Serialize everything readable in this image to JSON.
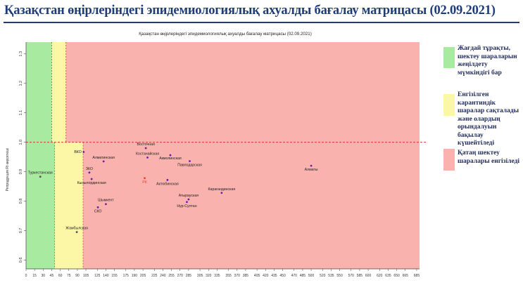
{
  "slide": {
    "title": "Қазақстан өңірлеріндегі эпидемиологиялық ахуалды бағалау матрицасы  (02.09.2021)"
  },
  "legend": [
    {
      "color": "#a8eaa0",
      "label": "Жағдай тұрақты, шектеу шараларын жеңілдету мүмкіндігі бар"
    },
    {
      "color": "#fbf7a6",
      "label": "Енгізілген карантиндік шаралар сақталады және олардың орындалуын бақылау күшейтіледі"
    },
    {
      "color": "#f9b2ad",
      "label": "Қатаң шектеу шаралары енгізіледі"
    }
  ],
  "chart_data": {
    "type": "scatter",
    "title": "Қазақстан өңірлеріндегі эпидемиологиялық ахуалды бағалау матрицасы  (02.09.2021)",
    "ylabel": "Репродукция Rt көрсеткіші",
    "xlabel": "",
    "xlim": [
      0,
      690
    ],
    "ylim": [
      0.57,
      1.34
    ],
    "x_ticks": [
      0,
      15,
      30,
      45,
      60,
      75,
      90,
      105,
      125,
      140,
      155,
      175,
      190,
      205,
      225,
      240,
      255,
      270,
      285,
      305,
      320,
      335,
      355,
      370,
      385,
      405,
      420,
      435,
      450,
      470,
      485,
      500,
      520,
      535,
      550,
      570,
      585,
      600,
      620,
      635,
      650,
      665,
      685
    ],
    "y_ticks": [
      0.6,
      0.7,
      0.8,
      0.9,
      1.0,
      1.1,
      1.2,
      1.3
    ],
    "grid": false,
    "threshold_line": 1.0,
    "zones": [
      {
        "color": "#a8eaa0",
        "x_from": 0,
        "x_to": 50,
        "y_from": 0.57,
        "y_to": 1.34
      },
      {
        "color": "#fbf7a6",
        "x_from": 50,
        "x_to": 100,
        "y_from": 0.57,
        "y_to": 1.0
      },
      {
        "color": "#fbf7a6",
        "x_from": 45,
        "x_to": 70,
        "y_from": 1.0,
        "y_to": 1.34
      },
      {
        "color": "#f9b2ad",
        "x_from": 70,
        "x_to": 690,
        "y_from": 1.0,
        "y_to": 1.34
      },
      {
        "color": "#f9b2ad",
        "x_from": 100,
        "x_to": 690,
        "y_from": 0.57,
        "y_to": 1.0
      }
    ],
    "points": [
      {
        "name": "Туркестанская",
        "x": 25,
        "y": 0.883,
        "color": "#555555"
      },
      {
        "name": "Жамбылская",
        "x": 89,
        "y": 0.695,
        "color": "#555555"
      },
      {
        "name": "ВКО",
        "x": 101,
        "y": 0.967,
        "color": "#6a1fb0"
      },
      {
        "name": "ЗКО",
        "x": 111,
        "y": 0.897,
        "color": "#6a1fb0"
      },
      {
        "name": "Алматинская",
        "x": 136,
        "y": 0.935,
        "color": "#6a1fb0"
      },
      {
        "name": "Кызылординская",
        "x": 115,
        "y": 0.875,
        "color": "#6a1fb0"
      },
      {
        "name": "Шымкент",
        "x": 140,
        "y": 0.79,
        "color": "#6a1fb0"
      },
      {
        "name": "СКО",
        "x": 126,
        "y": 0.779,
        "color": "#6a1fb0"
      },
      {
        "name": "Восточная",
        "x": 210,
        "y": 0.98,
        "color": "#6a1fb0"
      },
      {
        "name": "Костанайская",
        "x": 213,
        "y": 0.948,
        "color": "#6a1fb0"
      },
      {
        "name": "РК",
        "x": 208,
        "y": 0.878,
        "color": "#e8402e"
      },
      {
        "name": "Акмолинская",
        "x": 253,
        "y": 0.956,
        "color": "#6a1fb0"
      },
      {
        "name": "Павлодарская",
        "x": 287,
        "y": 0.936,
        "color": "#6a1fb0"
      },
      {
        "name": "Актюбинская",
        "x": 248,
        "y": 0.872,
        "color": "#6a1fb0"
      },
      {
        "name": "Атырауская",
        "x": 285,
        "y": 0.806,
        "color": "#6a1fb0"
      },
      {
        "name": "Нур-Султан",
        "x": 282,
        "y": 0.797,
        "color": "#6a1fb0"
      },
      {
        "name": "Карагандинская",
        "x": 343,
        "y": 0.828,
        "color": "#6a1fb0"
      },
      {
        "name": "Алматы",
        "x": 500,
        "y": 0.92,
        "color": "#6a1fb0"
      }
    ]
  }
}
